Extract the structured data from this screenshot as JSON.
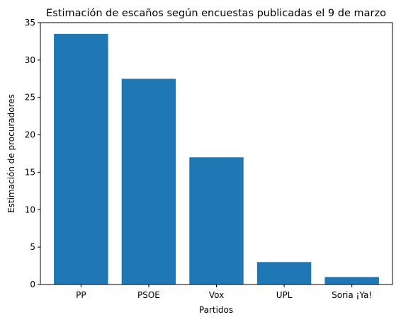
{
  "chart_data": {
    "type": "bar",
    "title": "Estimación de escaños según encuestas publicadas el 9 de marzo",
    "xlabel": "Partidos",
    "ylabel": "Estimación de procuradores",
    "categories": [
      "PP",
      "PSOE",
      "Vox",
      "UPL",
      "Soria ¡Ya!"
    ],
    "values": [
      33.5,
      27.5,
      17,
      3,
      1
    ],
    "ylim": [
      0,
      35
    ],
    "yticks": [
      0,
      5,
      10,
      15,
      20,
      25,
      30,
      35
    ],
    "colors": {
      "bar": "#1f77b4"
    },
    "grid": false,
    "legend": "none"
  }
}
